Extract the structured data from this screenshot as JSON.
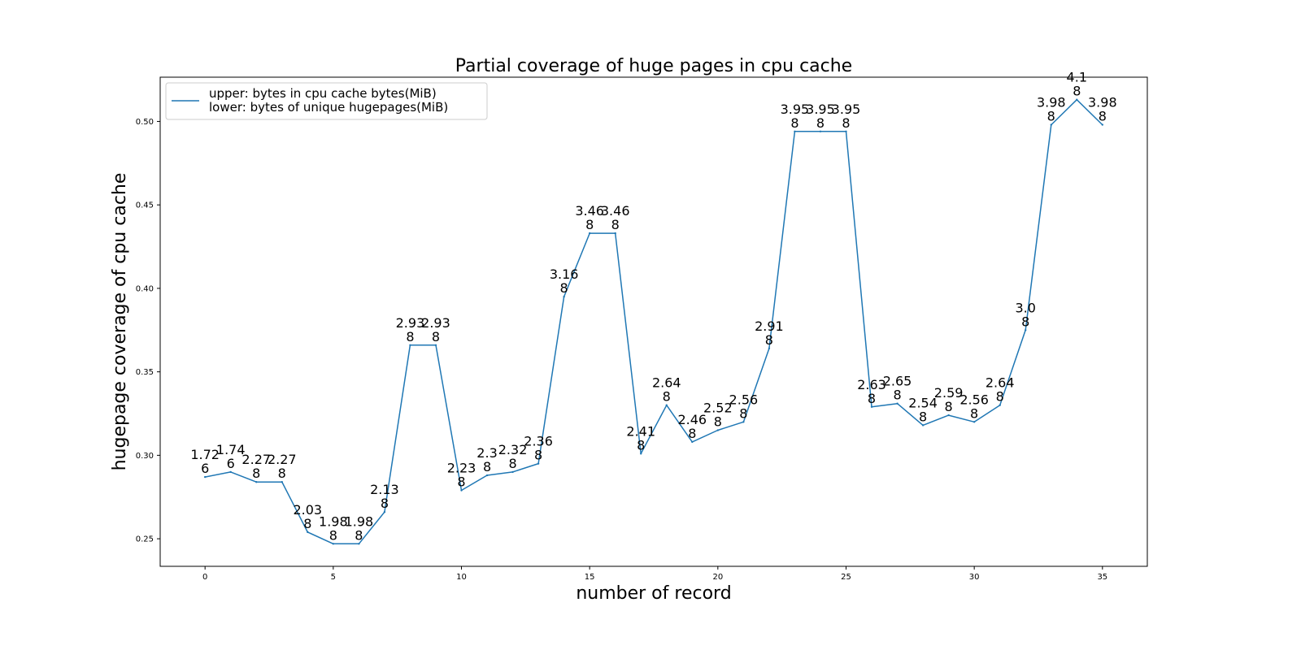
{
  "chart_data": {
    "type": "line",
    "title": "Partial coverage of huge pages in cpu cache",
    "xlabel": "number of record",
    "ylabel": "hugepage coverage of cpu cache",
    "xlim": [
      -1.75,
      36.75
    ],
    "ylim": [
      0.2335,
      0.5265
    ],
    "x_ticks": [
      "0",
      "5",
      "10",
      "15",
      "20",
      "25",
      "30",
      "35"
    ],
    "y_ticks": [
      "0.25",
      "0.30",
      "0.35",
      "0.40",
      "0.45",
      "0.50"
    ],
    "legend": {
      "position": "top-left",
      "lines": [
        "upper: bytes in cpu cache bytes(MiB)",
        "lower: bytes of unique hugepages(MiB)"
      ]
    },
    "grid": false,
    "series": [
      {
        "color": "#1f77b4",
        "x": [
          0,
          1,
          2,
          3,
          4,
          5,
          6,
          7,
          8,
          9,
          10,
          11,
          12,
          13,
          14,
          15,
          16,
          17,
          18,
          19,
          20,
          21,
          22,
          23,
          24,
          25,
          26,
          27,
          28,
          29,
          30,
          31,
          32,
          33,
          34,
          35
        ],
        "y": [
          0.287,
          0.29,
          0.284,
          0.284,
          0.254,
          0.247,
          0.247,
          0.266,
          0.366,
          0.366,
          0.279,
          0.288,
          0.29,
          0.295,
          0.395,
          0.433,
          0.433,
          0.301,
          0.33,
          0.308,
          0.315,
          0.32,
          0.364,
          0.494,
          0.494,
          0.494,
          0.329,
          0.331,
          0.318,
          0.324,
          0.32,
          0.33,
          0.375,
          0.498,
          0.513,
          0.498
        ],
        "labels": [
          [
            "1.72",
            "6"
          ],
          [
            "1.74",
            "6"
          ],
          [
            "2.27",
            "8"
          ],
          [
            "2.27",
            "8"
          ],
          [
            "2.03",
            "8"
          ],
          [
            "1.98",
            "8"
          ],
          [
            "1.98",
            "8"
          ],
          [
            "2.13",
            "8"
          ],
          [
            "2.93",
            "8"
          ],
          [
            "2.93",
            "8"
          ],
          [
            "2.23",
            "8"
          ],
          [
            "2.3",
            "8"
          ],
          [
            "2.32",
            "8"
          ],
          [
            "2.36",
            "8"
          ],
          [
            "3.16",
            "8"
          ],
          [
            "3.46",
            "8"
          ],
          [
            "3.46",
            "8"
          ],
          [
            "2.41",
            "8"
          ],
          [
            "2.64",
            "8"
          ],
          [
            "2.46",
            "8"
          ],
          [
            "2.52",
            "8"
          ],
          [
            "2.56",
            "8"
          ],
          [
            "2.91",
            "8"
          ],
          [
            "3.95",
            "8"
          ],
          [
            "3.95",
            "8"
          ],
          [
            "3.95",
            "8"
          ],
          [
            "2.63",
            "8"
          ],
          [
            "2.65",
            "8"
          ],
          [
            "2.54",
            "8"
          ],
          [
            "2.59",
            "8"
          ],
          [
            "2.56",
            "8"
          ],
          [
            "2.64",
            "8"
          ],
          [
            "3.0",
            "8"
          ],
          [
            "3.98",
            "8"
          ],
          [
            "4.1",
            "8"
          ],
          [
            "3.98",
            "8"
          ]
        ]
      }
    ]
  }
}
